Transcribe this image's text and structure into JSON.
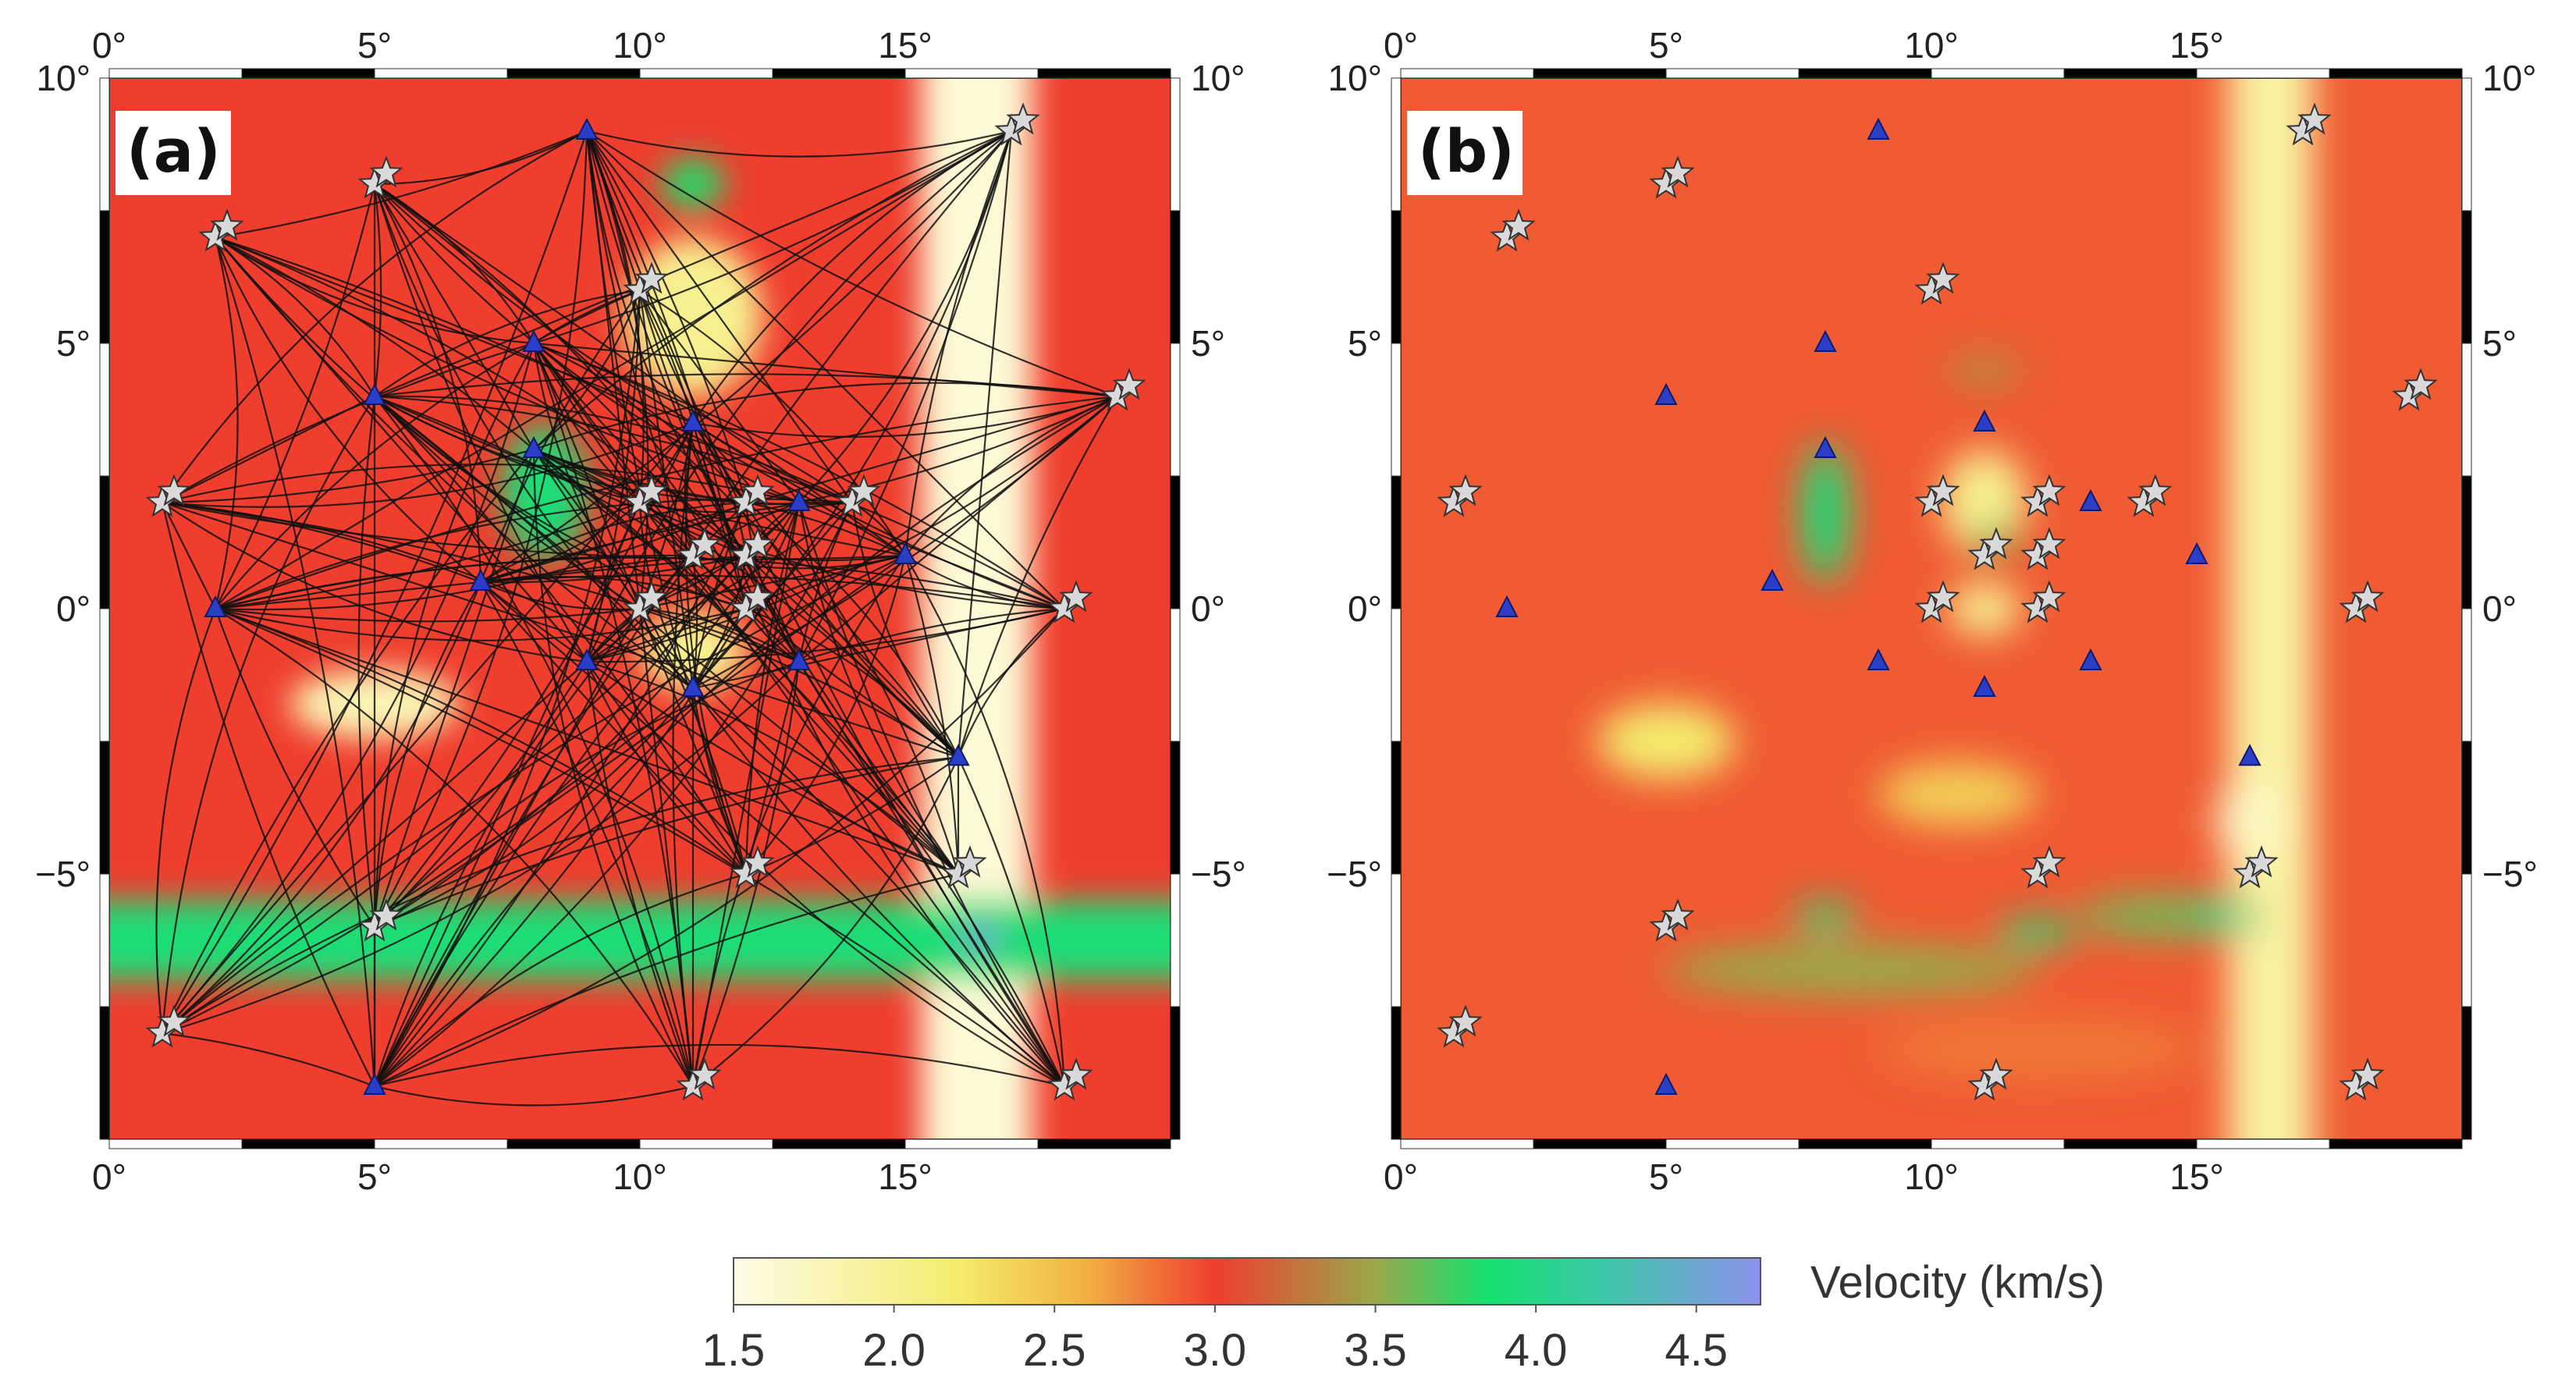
{
  "chart_data": {
    "type": "heatmap",
    "title": "",
    "colorbar": {
      "label": "Velocity (km/s)",
      "min": 1.5,
      "max": 4.7,
      "tick_values": [
        1.5,
        2.0,
        2.5,
        3.0,
        3.5,
        4.0,
        4.5
      ],
      "tick_labels": [
        "1.5",
        "2.0",
        "2.5",
        "3.0",
        "3.5",
        "4.0",
        "4.5"
      ],
      "stops": [
        {
          "v": 1.5,
          "color": "#fffbe6"
        },
        {
          "v": 2.2,
          "color": "#f4ec6e"
        },
        {
          "v": 2.6,
          "color": "#f2b043"
        },
        {
          "v": 3.0,
          "color": "#ef3e2e"
        },
        {
          "v": 3.5,
          "color": "#9aa84a"
        },
        {
          "v": 3.85,
          "color": "#14e06e"
        },
        {
          "v": 4.2,
          "color": "#3cc8a6"
        },
        {
          "v": 4.7,
          "color": "#8c92ec"
        }
      ]
    },
    "axes": {
      "xlim": [
        0,
        20
      ],
      "ylim": [
        -10,
        10
      ],
      "x_ticks": [
        0,
        5,
        10,
        15
      ],
      "x_tick_labels": [
        "0°",
        "5°",
        "10°",
        "15°"
      ],
      "y_ticks": [
        10,
        5,
        0,
        -5
      ],
      "y_tick_labels": [
        "10°",
        "5°",
        "0°",
        "−5°"
      ]
    },
    "stations": [
      [
        9,
        9
      ],
      [
        8,
        5
      ],
      [
        5,
        4
      ],
      [
        8,
        3
      ],
      [
        11,
        3.5
      ],
      [
        13,
        2
      ],
      [
        7,
        0.5
      ],
      [
        2,
        0
      ],
      [
        15,
        1
      ],
      [
        9,
        -1
      ],
      [
        11,
        -1.5
      ],
      [
        13,
        -1
      ],
      [
        16,
        -2.8
      ],
      [
        5,
        -9
      ]
    ],
    "sources": [
      [
        17,
        9
      ],
      [
        5,
        8
      ],
      [
        2,
        7
      ],
      [
        10,
        6
      ],
      [
        19,
        4
      ],
      [
        1,
        2
      ],
      [
        10,
        2
      ],
      [
        12,
        2
      ],
      [
        14,
        2
      ],
      [
        11,
        1
      ],
      [
        12,
        1
      ],
      [
        10,
        0
      ],
      [
        12,
        0
      ],
      [
        18,
        0
      ],
      [
        12,
        -5
      ],
      [
        16,
        -5
      ],
      [
        5,
        -6
      ],
      [
        1,
        -8
      ],
      [
        11,
        -9
      ],
      [
        18,
        -9
      ]
    ],
    "panels": [
      {
        "id": "a",
        "label": "(a)",
        "content": "initial model with ray paths",
        "background_velocity": 3.0,
        "features": [
          {
            "kind": "band",
            "orientation": "vertical",
            "from": 15.3,
            "to": 17.4,
            "velocity": 1.6
          },
          {
            "kind": "band",
            "orientation": "horizontal",
            "from": -7.0,
            "to": -5.5,
            "velocity": 3.9
          },
          {
            "kind": "blob",
            "center": [
              5,
              -1.8
            ],
            "size": [
              3.2,
              1.3
            ],
            "velocity": 1.8
          },
          {
            "kind": "blob",
            "center": [
              11,
              5.5
            ],
            "size": [
              2.6,
              3.0
            ],
            "velocity": 2.0
          },
          {
            "kind": "blob",
            "center": [
              11,
              -0.8
            ],
            "size": [
              2.0,
              1.5
            ],
            "velocity": 2.0
          },
          {
            "kind": "blob",
            "center": [
              11,
              8
            ],
            "size": [
              1.2,
              1.0
            ],
            "velocity": 3.8
          },
          {
            "kind": "blob",
            "center": [
              8.2,
              2.2
            ],
            "size": [
              1.6,
              2.5
            ],
            "velocity": 3.9
          },
          {
            "kind": "blob",
            "center": [
              16.4,
              -6.2
            ],
            "size": [
              0.8,
              0.5
            ],
            "velocity": 4.6
          }
        ]
      },
      {
        "id": "b",
        "label": "(b)",
        "content": "inverted model",
        "background_velocity": 2.9,
        "features": [
          {
            "kind": "band",
            "orientation": "vertical",
            "from": 15.6,
            "to": 17.2,
            "velocity": 1.9
          },
          {
            "kind": "blob",
            "center": [
              16,
              -4
            ],
            "size": [
              1.3,
              1.6
            ],
            "velocity": 1.7
          },
          {
            "kind": "blob",
            "center": [
              5,
              -2.5
            ],
            "size": [
              2.6,
              1.4
            ],
            "velocity": 2.2
          },
          {
            "kind": "blob",
            "center": [
              11,
              2
            ],
            "size": [
              1.6,
              2.0
            ],
            "velocity": 2.0
          },
          {
            "kind": "blob",
            "center": [
              11,
              0
            ],
            "size": [
              1.4,
              1.0
            ],
            "velocity": 2.0
          },
          {
            "kind": "blob",
            "center": [
              10.5,
              -3.5
            ],
            "size": [
              3.0,
              1.2
            ],
            "velocity": 2.4
          },
          {
            "kind": "blob",
            "center": [
              8,
              1.8
            ],
            "size": [
              0.9,
              2.6
            ],
            "velocity": 3.9
          },
          {
            "kind": "blob",
            "center": [
              11.2,
              1.3
            ],
            "size": [
              0.8,
              0.6
            ],
            "velocity": 3.6
          },
          {
            "kind": "blob",
            "center": [
              11,
              4.5
            ],
            "size": [
              1.4,
              0.5
            ],
            "velocity": 3.4
          },
          {
            "kind": "blob",
            "center": [
              8.5,
              -6.8
            ],
            "size": [
              7.0,
              1.0
            ],
            "velocity": 3.5
          },
          {
            "kind": "blob",
            "center": [
              14.5,
              -5.8
            ],
            "size": [
              3.5,
              0.8
            ],
            "velocity": 3.6
          },
          {
            "kind": "blob",
            "center": [
              8,
              -5.8
            ],
            "size": [
              1.2,
              0.5
            ],
            "velocity": 3.9
          },
          {
            "kind": "blob",
            "center": [
              12,
              -6.1
            ],
            "size": [
              1.5,
              0.5
            ],
            "velocity": 3.9
          },
          {
            "kind": "blob",
            "center": [
              15.5,
              -5.8
            ],
            "size": [
              1.0,
              0.6
            ],
            "velocity": 4.0
          },
          {
            "kind": "blob",
            "center": [
              12,
              -8.3
            ],
            "size": [
              6.0,
              1.2
            ],
            "velocity": 2.8
          }
        ]
      }
    ]
  }
}
